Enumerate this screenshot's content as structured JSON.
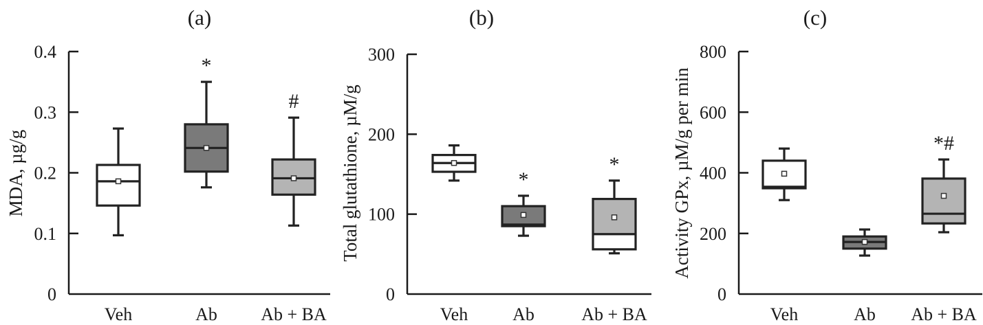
{
  "chart_data": [
    {
      "type": "box",
      "title": "(a)",
      "ylabel": "MDA, µg/g",
      "ylim": [
        0,
        0.4
      ],
      "yticks": [
        "0",
        "0.1",
        "0.2",
        "0.3",
        "0.4"
      ],
      "ytick_values": [
        0,
        0.1,
        0.2,
        0.3,
        0.4
      ],
      "categories": [
        "Veh",
        "Ab",
        "Ab + BA"
      ],
      "boxes": [
        {
          "min": 0.097,
          "q1": 0.146,
          "median": 0.186,
          "mean": 0.186,
          "q3": 0.213,
          "max": 0.273,
          "fill": "#ffffff",
          "mark": ""
        },
        {
          "min": 0.176,
          "q1": 0.202,
          "median": 0.241,
          "mean": 0.241,
          "q3": 0.28,
          "max": 0.35,
          "fill": "#7a7a7a",
          "mark": "*"
        },
        {
          "min": 0.113,
          "q1": 0.164,
          "median": 0.191,
          "mean": 0.191,
          "q3": 0.222,
          "max": 0.291,
          "fill": "#b4b4b4",
          "mark": "#"
        }
      ]
    },
    {
      "type": "box",
      "title": "(b)",
      "ylabel": "Total glutathione, µM/g",
      "ylim": [
        0,
        300
      ],
      "yticks": [
        "0",
        "100",
        "200",
        "300"
      ],
      "ytick_values": [
        0,
        100,
        200,
        300
      ],
      "categories": [
        "Veh",
        "Ab",
        "Ab + BA"
      ],
      "boxes": [
        {
          "min": 142,
          "q1": 153,
          "median": 164,
          "mean": 164,
          "q3": 174,
          "max": 186,
          "fill": "#ffffff",
          "mark": ""
        },
        {
          "min": 73,
          "q1": 85,
          "median": 87,
          "mean": 99,
          "q3": 110,
          "max": 123,
          "fill": "#7a7a7a",
          "mark": "*"
        },
        {
          "min": 51,
          "q1": 56,
          "median": 75,
          "mean": 96,
          "q3": 119,
          "max": 142,
          "fill": "#b4b4b4",
          "lower_fill": "#ffffff",
          "mark": "*"
        }
      ]
    },
    {
      "type": "box",
      "title": "(c)",
      "ylabel": "Activity GPx, µM/g per min",
      "ylim": [
        0,
        800
      ],
      "yticks": [
        "0",
        "200",
        "400",
        "600",
        "800"
      ],
      "ytick_values": [
        0,
        200,
        400,
        600,
        800
      ],
      "categories": [
        "Veh",
        "Ab",
        "Ab + BA"
      ],
      "boxes": [
        {
          "min": 310,
          "q1": 349,
          "median": 354,
          "mean": 397,
          "q3": 440,
          "max": 480,
          "fill": "#ffffff",
          "mark": ""
        },
        {
          "min": 127,
          "q1": 150,
          "median": 172,
          "mean": 172,
          "q3": 190,
          "max": 213,
          "fill": "#7a7a7a",
          "mark": ""
        },
        {
          "min": 204,
          "q1": 233,
          "median": 265,
          "mean": 324,
          "q3": 381,
          "max": 444,
          "fill": "#b4b4b4",
          "mark": "*#"
        }
      ]
    }
  ]
}
